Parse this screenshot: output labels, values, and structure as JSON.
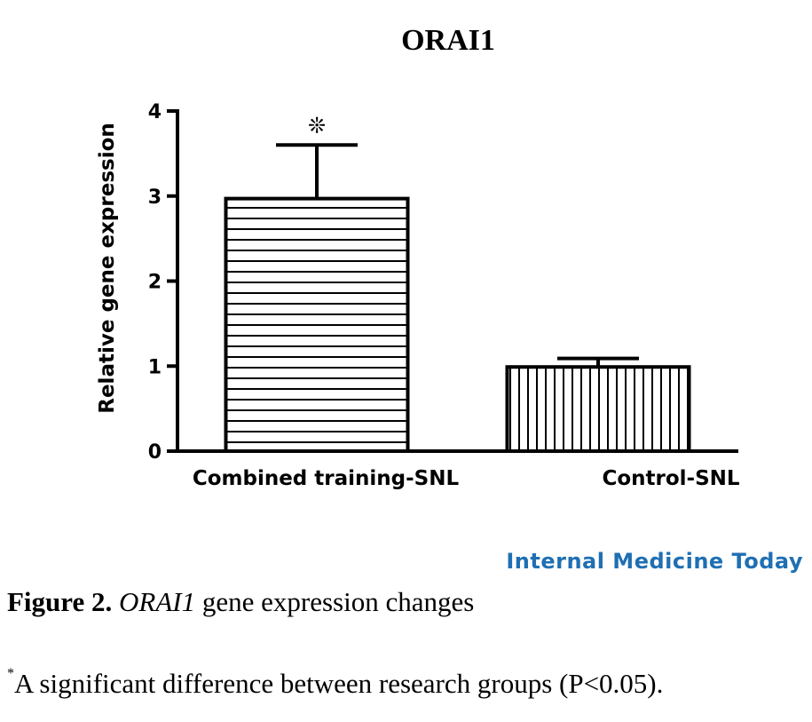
{
  "chart_data": {
    "type": "bar",
    "title": "ORAI1",
    "ylabel": "Relative gene expression",
    "xlabel": "",
    "categories": [
      "Combined training-SNL",
      "Control-SNL"
    ],
    "values": [
      2.97,
      0.99
    ],
    "error_upper": [
      3.6,
      1.09
    ],
    "significance": [
      "❊",
      ""
    ],
    "ylim": [
      0,
      4
    ],
    "yticks": [
      "0",
      "1",
      "2",
      "3",
      "4"
    ],
    "bar_fill": [
      "horizontal-stripes",
      "vertical-stripes"
    ],
    "grid": false,
    "legend": "none"
  },
  "watermark": "Internal Medicine Today",
  "caption": {
    "label": "Figure 2.",
    "gene": "ORAI1",
    "text": "gene expression changes"
  },
  "footnote": {
    "marker": "*",
    "text": "A significant difference between research groups (P<0.05)."
  }
}
